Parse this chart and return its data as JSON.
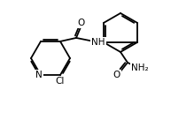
{
  "figsize": [
    2.19,
    1.44
  ],
  "dpi": 100,
  "bg": "#ffffff",
  "lw": 1.3,
  "lc": "#000000",
  "font_size": 7.5,
  "font_color": "#000000",
  "xlim": [
    0,
    219
  ],
  "ylim": [
    0,
    144
  ]
}
